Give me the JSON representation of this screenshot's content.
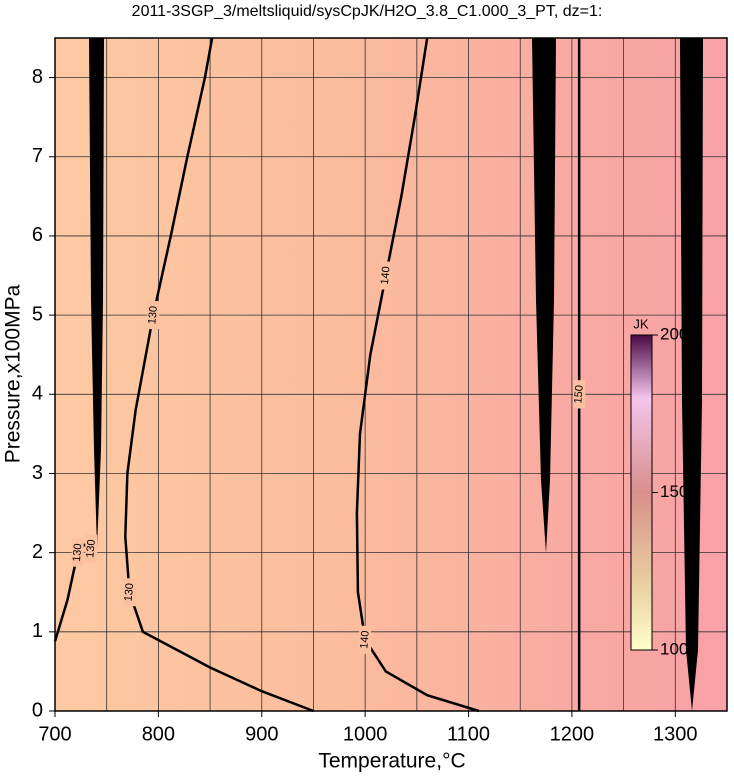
{
  "chart_data": {
    "type": "contour",
    "title": "2011-3SGP_3/meltsliquid/sysCpJK/H2O_3.8_C1.000_3_PT, dz=1:",
    "xlabel": "Temperature,°C",
    "ylabel": "Pressure,x100MPa",
    "xlim": [
      700,
      1350
    ],
    "ylim": [
      0,
      8.5
    ],
    "xticks": [
      700,
      800,
      900,
      1000,
      1100,
      1200,
      1300
    ],
    "xminorticks": [
      750,
      850,
      950,
      1050,
      1150,
      1250
    ],
    "yticks": [
      0,
      1,
      2,
      3,
      4,
      5,
      6,
      7,
      8
    ],
    "grid": true,
    "contours": [
      {
        "level": 130,
        "x": [
          950,
          900,
          850,
          785,
          772,
          768,
          770,
          778,
          795,
          812,
          828,
          845,
          852
        ],
        "y": [
          0,
          0.25,
          0.55,
          1.0,
          1.5,
          2.2,
          3,
          3.8,
          5,
          6,
          7,
          8.0,
          8.5
        ]
      },
      {
        "level": 130,
        "x": [
          700,
          712,
          722,
          728,
          735,
          740
        ],
        "y": [
          0.88,
          1.4,
          2.0,
          2.1,
          2.05,
          2.0
        ]
      },
      {
        "level": 140,
        "x": [
          1110,
          1060,
          1020,
          1000,
          993,
          992,
          995,
          1005,
          1020,
          1035,
          1048,
          1060
        ],
        "y": [
          0,
          0.2,
          0.5,
          0.9,
          1.5,
          2.5,
          3.5,
          4.5,
          5.5,
          6.5,
          7.5,
          8.5
        ]
      },
      {
        "level": 150,
        "x": [
          1207,
          1207,
          1207
        ],
        "y": [
          0,
          4,
          8.5
        ]
      }
    ],
    "colorbar": {
      "label": "JK",
      "lim": [
        100,
        200
      ],
      "ticks": [
        100,
        150,
        200
      ]
    }
  }
}
